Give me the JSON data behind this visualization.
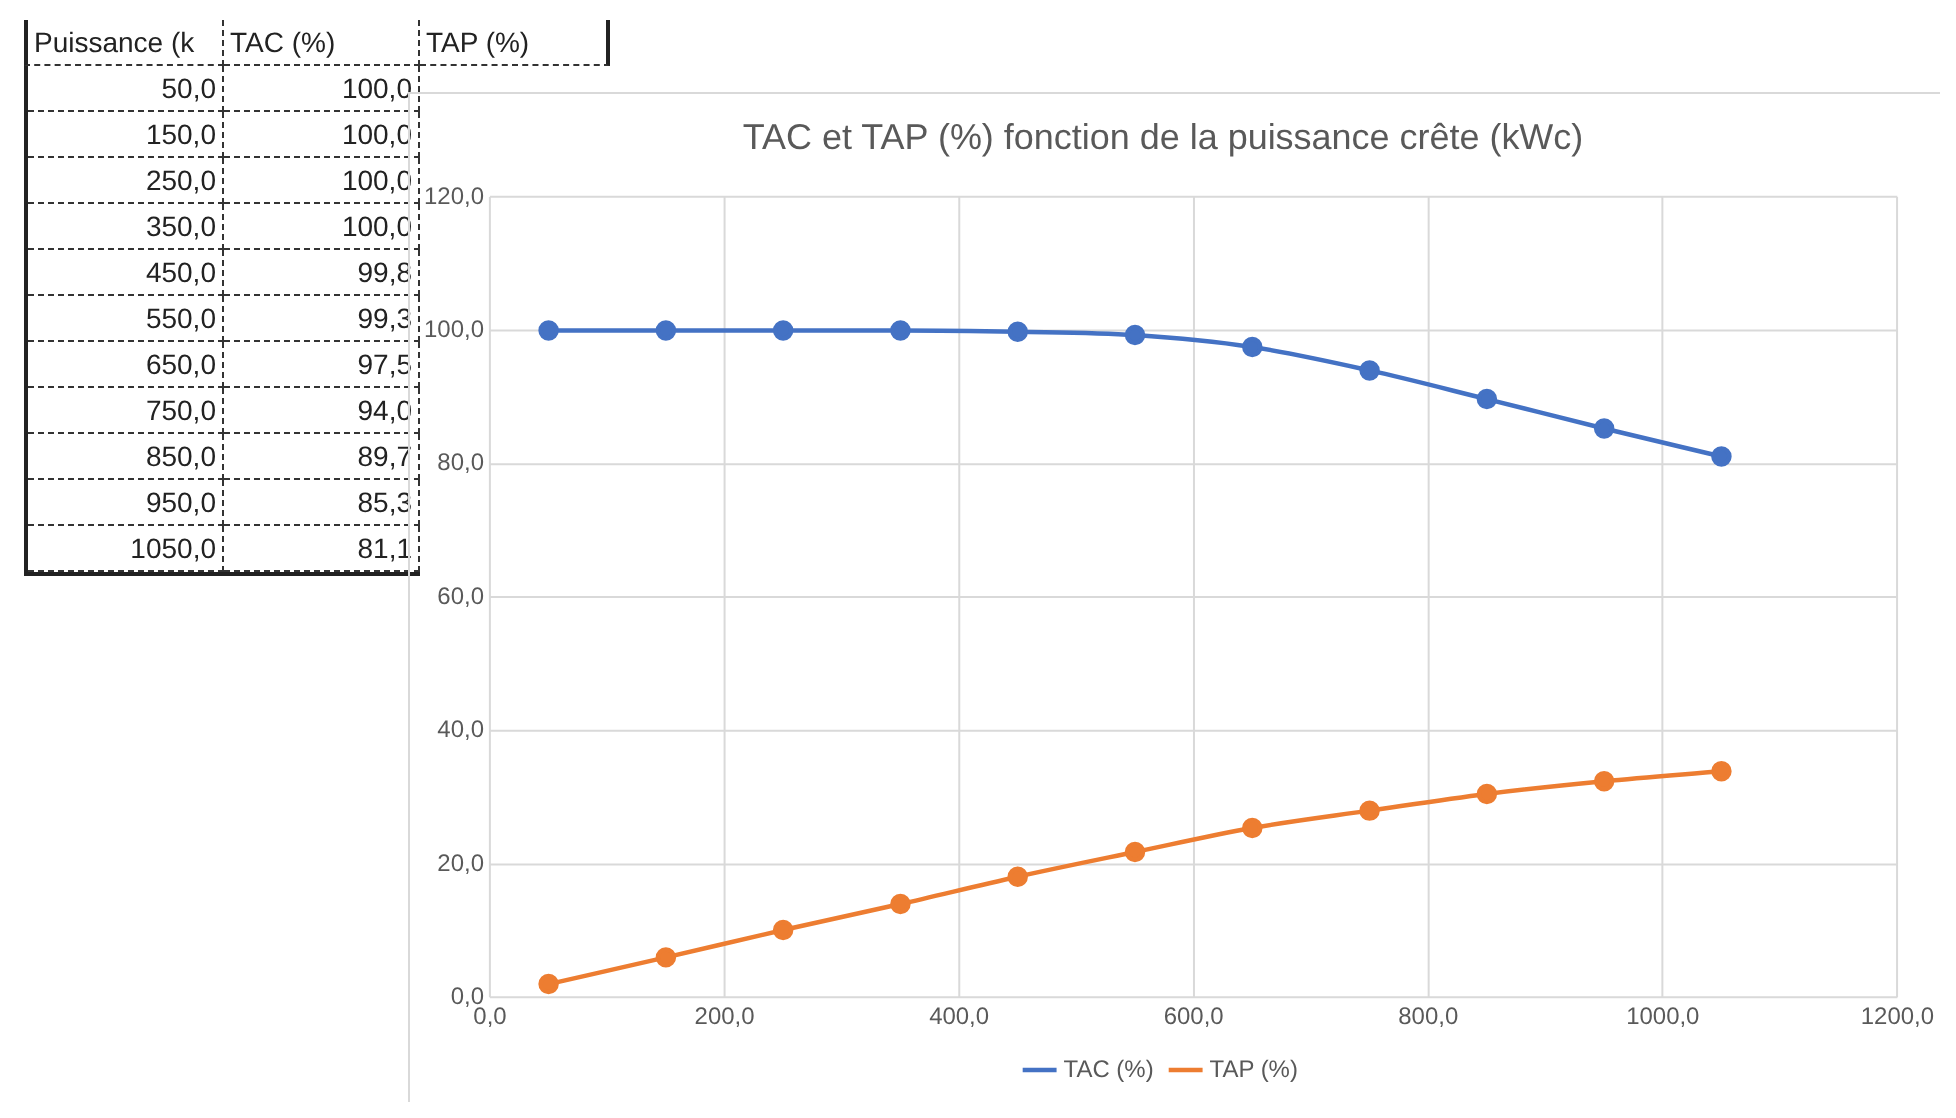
{
  "chart_data": {
    "type": "line",
    "title": "TAC et TAP (%) fonction de la puissance crête (kWc)",
    "annotations": [
      "Puissance (k",
      "TAC (%)",
      "TAP (%)",
      "50,0",
      "100,0",
      "150,0",
      "100,0",
      "250,0",
      "100,0",
      "350,0",
      "100,0",
      "450,0",
      "99,8",
      "550,0",
      "99,3",
      "650,0",
      "97,5",
      "750,0",
      "94,0",
      "850,0",
      "89,7",
      "950,0",
      "85,3",
      "1050,0",
      "81,1"
    ],
    "x": [
      50,
      150,
      250,
      350,
      450,
      550,
      650,
      750,
      850,
      950,
      1050
    ],
    "series": [
      {
        "name": "TAC (%)",
        "color": "#4472c4",
        "values": [
          100.0,
          100.0,
          100.0,
          100.0,
          99.8,
          99.3,
          97.5,
          94.0,
          89.7,
          85.3,
          81.1
        ]
      },
      {
        "name": "TAP (%)",
        "color": "#ed7d31",
        "values": [
          2.0,
          6.0,
          10.1,
          14.0,
          18.1,
          21.8,
          25.4,
          28.0,
          30.5,
          32.4,
          33.9
        ]
      }
    ],
    "xlim": [
      0,
      1200
    ],
    "xticks": [
      {
        "value": 0,
        "label": "0,0"
      },
      {
        "value": 200,
        "label": "200,0"
      },
      {
        "value": 400,
        "label": "400,0"
      },
      {
        "value": 600,
        "label": "600,0"
      },
      {
        "value": 800,
        "label": "800,0"
      },
      {
        "value": 1000,
        "label": "1000,0"
      },
      {
        "value": 1200,
        "label": "1200,0"
      }
    ],
    "ylim": [
      0,
      120
    ],
    "yticks": [
      {
        "value": 0,
        "label": "0,0"
      },
      {
        "value": 20,
        "label": "20,0"
      },
      {
        "value": 40,
        "label": "40,0"
      },
      {
        "value": 60,
        "label": "60,0"
      },
      {
        "value": 80,
        "label": "80,0"
      },
      {
        "value": 100,
        "label": "100,0"
      },
      {
        "value": 120,
        "label": "120,0"
      }
    ],
    "grid": true,
    "legend": "bottom",
    "marker": "circle",
    "line_style": "solid"
  }
}
